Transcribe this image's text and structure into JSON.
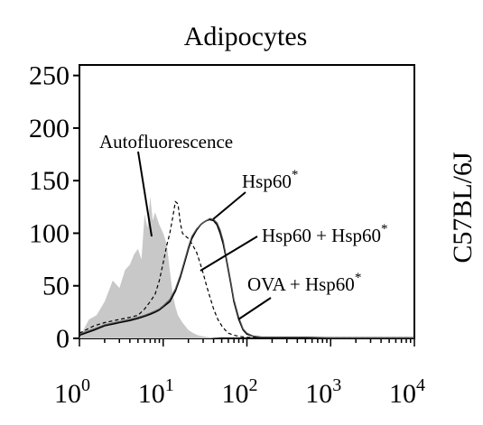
{
  "chart_data": {
    "type": "line",
    "title": "Adipocytes",
    "side_label": "C57BL/6J",
    "x_scale": "log",
    "xlim": [
      1,
      10000
    ],
    "ylim": [
      0,
      260
    ],
    "x_ticks": [
      {
        "value": 1,
        "base": "10",
        "exp": "0"
      },
      {
        "value": 10,
        "base": "10",
        "exp": "1"
      },
      {
        "value": 100,
        "base": "10",
        "exp": "2"
      },
      {
        "value": 1000,
        "base": "10",
        "exp": "3"
      },
      {
        "value": 10000,
        "base": "10",
        "exp": "4"
      }
    ],
    "y_ticks": [
      0,
      50,
      100,
      150,
      200,
      250
    ],
    "grid": false,
    "series": [
      {
        "name": "Autofluorescence",
        "style": "filled",
        "color": "#c8c8c8",
        "x": [
          1,
          1.15,
          1.3,
          1.6,
          2,
          2.5,
          3,
          3.5,
          4,
          4.5,
          5,
          5.5,
          6,
          6.5,
          7,
          7.5,
          8,
          9,
          10,
          11,
          12,
          13,
          14,
          15,
          17,
          20,
          23,
          26,
          30,
          35,
          40,
          50,
          60
        ],
        "values": [
          0,
          10,
          18,
          22,
          35,
          55,
          48,
          65,
          70,
          80,
          85,
          75,
          118,
          105,
          135,
          112,
          120,
          108,
          100,
          90,
          65,
          42,
          30,
          22,
          15,
          8,
          5,
          3,
          2,
          1,
          0.5,
          0,
          0
        ]
      },
      {
        "name": "Hsp60*",
        "style": "solid",
        "color": "#000000",
        "x": [
          1,
          1.5,
          2,
          3,
          4,
          5,
          6,
          7,
          8,
          9,
          10,
          12,
          14,
          16,
          18,
          20,
          22,
          25,
          28,
          30,
          33,
          36,
          40,
          44,
          48,
          52,
          56,
          60,
          65,
          70,
          80,
          90,
          100,
          120,
          150,
          200,
          300,
          500,
          1000,
          10000
        ],
        "values": [
          3,
          8,
          12,
          15,
          17,
          19,
          21,
          23,
          25,
          27,
          30,
          35,
          45,
          58,
          72,
          85,
          95,
          103,
          108,
          110,
          112,
          113,
          112,
          108,
          100,
          90,
          78,
          65,
          50,
          35,
          18,
          8,
          4,
          2,
          1,
          1,
          1,
          1,
          0.5,
          0.5
        ]
      },
      {
        "name": "Hsp60 + Hsp60*",
        "style": "dashed",
        "color": "#000000",
        "x": [
          1,
          1.5,
          2,
          3,
          4,
          5,
          6,
          7,
          8,
          9,
          10,
          11,
          12,
          13,
          14,
          15,
          16,
          17,
          18,
          20,
          22,
          25,
          28,
          30,
          33,
          36,
          40,
          45,
          50,
          55,
          60,
          70,
          80,
          100,
          150,
          300,
          10000
        ],
        "values": [
          5,
          12,
          15,
          18,
          20,
          22,
          28,
          35,
          42,
          55,
          72,
          88,
          100,
          115,
          130,
          128,
          110,
          100,
          98,
          95,
          90,
          82,
          70,
          62,
          50,
          40,
          28,
          18,
          12,
          8,
          5,
          3,
          2,
          1,
          1,
          0.5,
          0.5
        ]
      },
      {
        "name": "OVA + Hsp60*",
        "style": "solid-thin",
        "color": "#555555",
        "x": [
          1,
          1.5,
          2,
          3,
          4,
          5,
          6,
          7,
          8,
          9,
          10,
          12,
          14,
          16,
          18,
          20,
          22,
          25,
          28,
          30,
          33,
          36,
          40,
          44,
          48,
          52,
          56,
          60,
          65,
          70,
          80,
          90,
          100,
          120,
          150,
          200,
          300,
          500,
          1000,
          10000
        ],
        "values": [
          4,
          9,
          13,
          16,
          18,
          20,
          22,
          24,
          26,
          28,
          31,
          37,
          47,
          60,
          74,
          87,
          97,
          104,
          108,
          110,
          112,
          114,
          113,
          110,
          103,
          93,
          80,
          67,
          52,
          37,
          20,
          9,
          5,
          2,
          1,
          1,
          1,
          1,
          0.5,
          0.5
        ]
      }
    ],
    "annotations": [
      {
        "id": "autofluorescence",
        "text": "Autofluorescence",
        "sup": ""
      },
      {
        "id": "hsp60",
        "text": "Hsp60",
        "sup": "*"
      },
      {
        "id": "hsp60-hsp60",
        "text": "Hsp60 + Hsp60",
        "sup": "*"
      },
      {
        "id": "ova-hsp60",
        "text": "OVA + Hsp60",
        "sup": "*"
      }
    ]
  }
}
